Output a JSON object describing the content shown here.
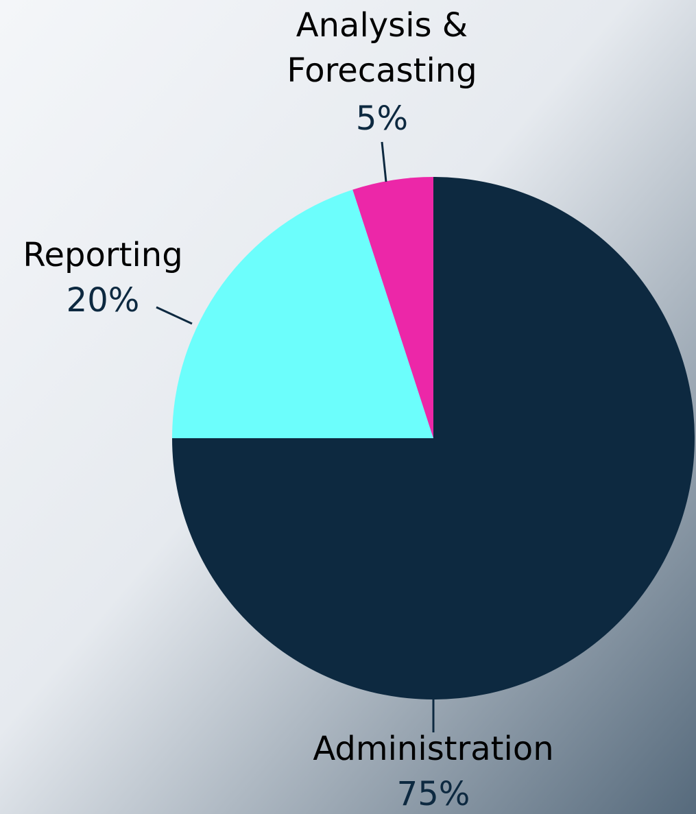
{
  "chart_data": {
    "type": "pie",
    "categories": [
      "Administration",
      "Reporting",
      "Analysis & Forecasting"
    ],
    "values": [
      75,
      20,
      5
    ],
    "value_labels": [
      "75%",
      "20%",
      "5%"
    ],
    "colors": [
      "#0d2940",
      "#6cfefc",
      "#ec27a8"
    ]
  }
}
